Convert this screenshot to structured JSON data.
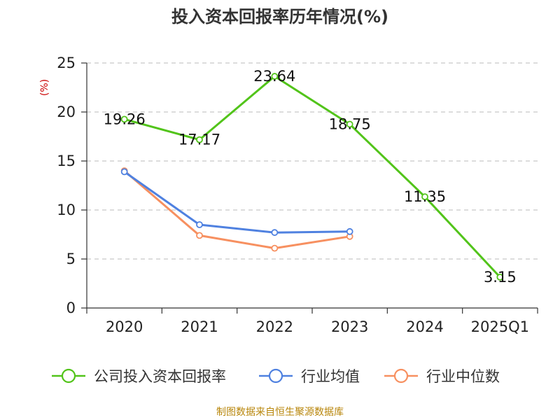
{
  "chart_data": {
    "type": "line",
    "title": "投入资本回报率历年情况(%)",
    "ylabel": "(%)",
    "xlabel": "",
    "categories": [
      "2020",
      "2021",
      "2022",
      "2023",
      "2024",
      "2025Q1"
    ],
    "ylim": [
      0,
      25
    ],
    "yticks": [
      0,
      5,
      10,
      15,
      20,
      25
    ],
    "grid": "horizontal dashed",
    "legend_position": "bottom",
    "series": [
      {
        "name": "公司投入资本回报率",
        "color": "#52c41a",
        "values": [
          19.26,
          17.17,
          23.64,
          18.75,
          11.35,
          3.15
        ],
        "labels": [
          "19.26",
          "17.17",
          "23.64",
          "18.75",
          "11.35",
          "3.15"
        ]
      },
      {
        "name": "行业均值",
        "color": "#4f81e0",
        "values": [
          13.9,
          8.5,
          7.7,
          7.8,
          null,
          null
        ]
      },
      {
        "name": "行业中位数",
        "color": "#f79060",
        "values": [
          14.0,
          7.4,
          6.1,
          7.3,
          null,
          null
        ]
      }
    ]
  },
  "source": "制图数据来自恒生聚源数据库"
}
